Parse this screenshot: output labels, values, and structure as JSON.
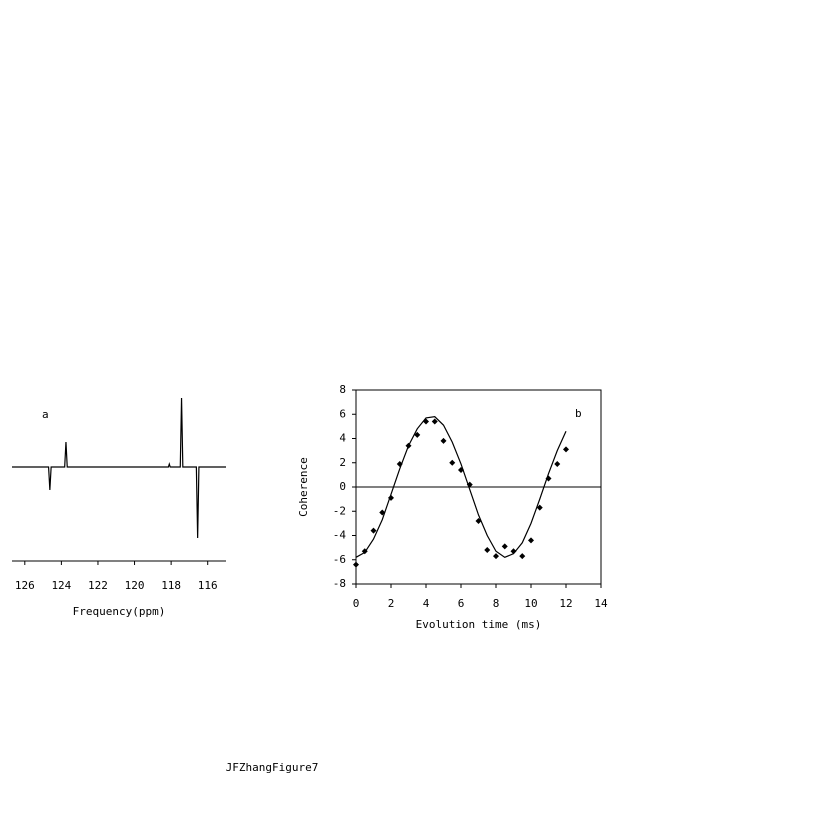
{
  "chart_data": [
    {
      "type": "line",
      "label": "a",
      "xlabel": "Frequency(ppm)",
      "x": [
        126.7,
        124.7,
        124.63,
        124.56,
        123.82,
        123.75,
        123.68,
        118.15,
        118.1,
        118.05,
        117.5,
        117.43,
        117.36,
        116.62,
        116.55,
        116.48,
        115.0
      ],
      "values": [
        0,
        0,
        -23,
        0,
        0,
        25,
        0,
        0,
        3,
        0,
        0,
        69,
        0,
        0,
        -71,
        0,
        0
      ],
      "color": "#000000",
      "xlim": [
        126.7,
        115.0
      ],
      "xticks": [
        126,
        124,
        122,
        120,
        118,
        116
      ]
    },
    {
      "type": "scatter",
      "label": "b",
      "xlabel": "Evolution time (ms)",
      "ylabel": "Coherence",
      "x": [
        0,
        0.5,
        1,
        1.5,
        2,
        2.5,
        3,
        3.5,
        4,
        4.5,
        5,
        5.5,
        6,
        6.5,
        7,
        7.5,
        8,
        8.5,
        9,
        9.5,
        10,
        10.5,
        11,
        11.5,
        12
      ],
      "series": [
        {
          "type": "scatter",
          "color": "#000000",
          "values": [
            -6.4,
            -5.3,
            -3.6,
            -2.1,
            -0.9,
            1.9,
            3.4,
            4.3,
            5.4,
            5.4,
            3.8,
            2.0,
            1.4,
            0.2,
            -2.8,
            -5.2,
            -5.7,
            -4.9,
            -5.3,
            -5.7,
            -4.4,
            -1.7,
            0.7,
            1.9,
            3.1
          ]
        },
        {
          "type": "line",
          "color": "#000000",
          "values": [
            -5.8,
            -5.4,
            -4.3,
            -2.7,
            -0.6,
            1.5,
            3.4,
            4.8,
            5.7,
            5.8,
            5.1,
            3.7,
            1.9,
            -0.2,
            -2.3,
            -4.0,
            -5.3,
            -5.8,
            -5.5,
            -4.6,
            -3.0,
            -1.0,
            1.1,
            3.0,
            4.6
          ]
        }
      ],
      "zero_line": true,
      "xlim": [
        0,
        14
      ],
      "xticks": [
        0,
        2,
        4,
        6,
        8,
        10,
        12,
        14
      ],
      "ylim": [
        -8,
        8
      ],
      "yticks": [
        -8,
        -6,
        -4,
        -2,
        0,
        2,
        4,
        6,
        8
      ]
    }
  ],
  "caption": "JFZhangFigure7"
}
